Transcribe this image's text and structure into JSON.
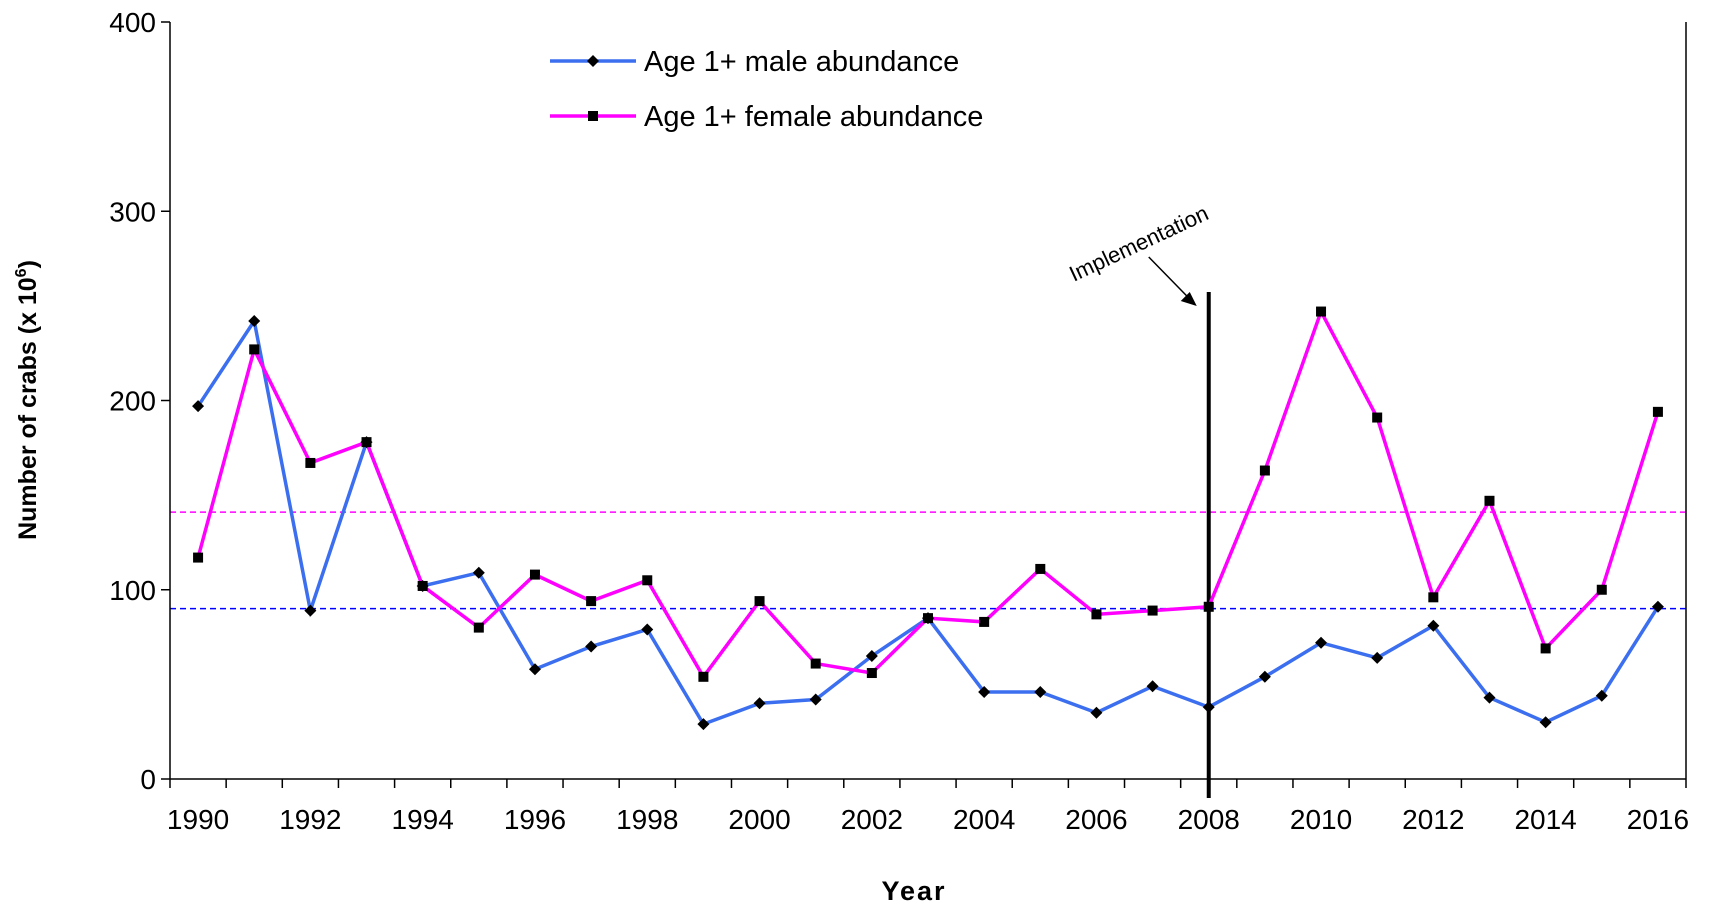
{
  "chart_data": {
    "type": "line",
    "x_label": "Year",
    "y_label": "Number of crabs (x 10",
    "y_label_exponent": "6",
    "y_label_suffix": ")",
    "categories": [
      "1990",
      null,
      "1992",
      null,
      "1994",
      null,
      "1996",
      null,
      "1998",
      null,
      "2000",
      null,
      "2002",
      null,
      "2004",
      null,
      "2006",
      null,
      "2008",
      null,
      "2010",
      null,
      "2012",
      null,
      "2014",
      null,
      "2016"
    ],
    "series": [
      {
        "name": "Age 1+ male abundance",
        "color": "#3b6ff0",
        "marker": "diamond",
        "values": [
          197,
          242,
          89,
          178,
          102,
          109,
          58,
          70,
          79,
          29,
          40,
          42,
          65,
          85,
          46,
          46,
          35,
          49,
          38,
          54,
          72,
          64,
          81,
          43,
          30,
          44,
          91
        ]
      },
      {
        "name": "Age 1+ female abundance",
        "color": "#ff00ff",
        "marker": "square",
        "values": [
          117,
          227,
          167,
          178,
          102,
          80,
          108,
          94,
          105,
          54,
          94,
          61,
          56,
          85,
          83,
          111,
          87,
          89,
          91,
          163,
          247,
          191,
          96,
          147,
          69,
          100,
          194
        ]
      }
    ],
    "reference_lines": [
      {
        "value": 141,
        "color": "#ff00ff"
      },
      {
        "value": 90,
        "color": "#0000ff"
      }
    ],
    "annotation": {
      "text": "Implementation",
      "category_index": 18
    },
    "ylim": [
      0,
      400
    ],
    "yticks": [
      0,
      100,
      200,
      300,
      400
    ],
    "legend": "top"
  }
}
